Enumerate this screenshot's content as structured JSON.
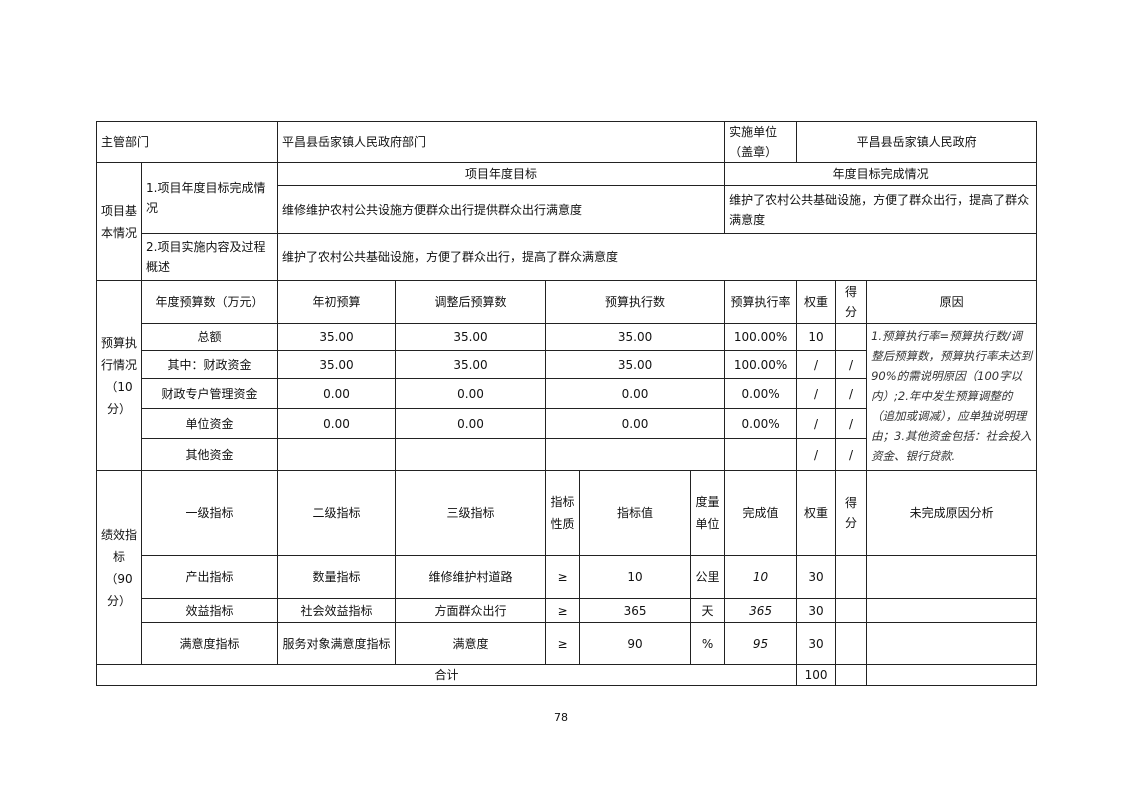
{
  "header": {
    "dept_label": "主管部门",
    "dept_value": "平昌县岳家镇人民政府部门",
    "unit_label": "实施单位（盖章）",
    "unit_value": "平昌县岳家镇人民政府"
  },
  "basic": {
    "section_label": "项目基本情况",
    "item1_label": "1.项目年度目标完成情况",
    "goal_header": "项目年度目标",
    "completion_header": "年度目标完成情况",
    "goal_value": "维修维护农村公共设施方便群众出行提供群众出行满意度",
    "completion_value": "维护了农村公共基础设施，方便了群众出行，提高了群众满意度",
    "item2_label": "2.项目实施内容及过程概述",
    "item2_value": "维护了农村公共基础设施，方便了群众出行，提高了群众满意度"
  },
  "budget": {
    "section_label": "预算执行情况（10分）",
    "headers": [
      "年度预算数（万元）",
      "年初预算",
      "调整后预算数",
      "预算执行数",
      "预算执行率",
      "权重",
      "得分",
      "原因"
    ],
    "rows": [
      {
        "label": "总额",
        "initial": "35.00",
        "adjusted": "35.00",
        "executed": "35.00",
        "rate": "100.00%",
        "weight": "10",
        "score": ""
      },
      {
        "label": "其中：财政资金",
        "initial": "35.00",
        "adjusted": "35.00",
        "executed": "35.00",
        "rate": "100.00%",
        "weight": "/",
        "score": "/"
      },
      {
        "label": "财政专户管理资金",
        "initial": "0.00",
        "adjusted": "0.00",
        "executed": "0.00",
        "rate": "0.00%",
        "weight": "/",
        "score": "/"
      },
      {
        "label": "单位资金",
        "initial": "0.00",
        "adjusted": "0.00",
        "executed": "0.00",
        "rate": "0.00%",
        "weight": "/",
        "score": "/"
      },
      {
        "label": "其他资金",
        "initial": "",
        "adjusted": "",
        "executed": "",
        "rate": "",
        "weight": "/",
        "score": "/"
      }
    ],
    "note": "1.预算执行率=预算执行数/调整后预算数，预算执行率未达到90%的需说明原因（100字以内）;2.年中发生预算调整的（追加或调减），应单独说明理由；3.其他资金包括：社会投入资金、银行贷款."
  },
  "performance": {
    "section_label": "绩效指标（90分）",
    "headers": [
      "一级指标",
      "二级指标",
      "三级指标",
      "指标性质",
      "指标值",
      "度量单位",
      "完成值",
      "权重",
      "得分",
      "未完成原因分析"
    ],
    "rows": [
      {
        "level1": "产出指标",
        "level2": "数量指标",
        "level3": "维修维护村道路",
        "nature": "≥",
        "target": "10",
        "unit": "公里",
        "actual": "10",
        "weight": "30",
        "score": "",
        "reason": ""
      },
      {
        "level1": "效益指标",
        "level2": "社会效益指标",
        "level3": "方面群众出行",
        "nature": "≥",
        "target": "365",
        "unit": "天",
        "actual": "365",
        "weight": "30",
        "score": "",
        "reason": ""
      },
      {
        "level1": "满意度指标",
        "level2": "服务对象满意度指标",
        "level3": "满意度",
        "nature": "≥",
        "target": "90",
        "unit": "%",
        "actual": "95",
        "weight": "30",
        "score": "",
        "reason": ""
      }
    ],
    "total_label": "合计",
    "total_weight": "100",
    "total_score": "",
    "total_reason": ""
  },
  "page_number": "78"
}
